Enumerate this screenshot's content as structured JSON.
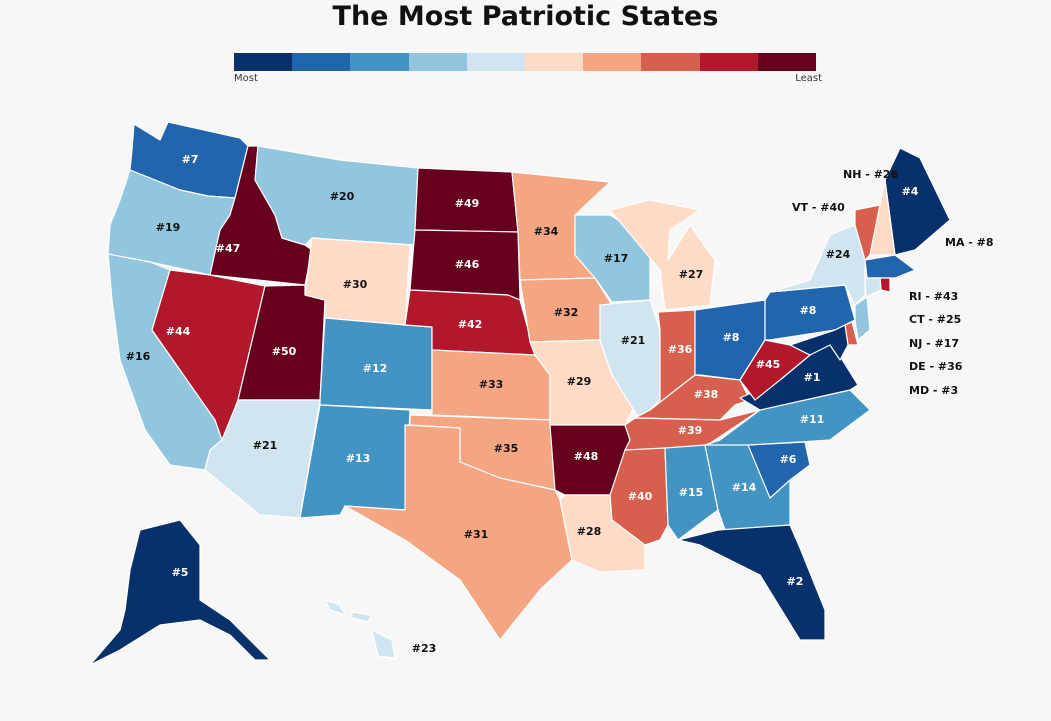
{
  "title": "The Most Patriotic States",
  "legend": {
    "low_label": "Most",
    "high_label": "Least",
    "colors": [
      "#08306b",
      "#2166ac",
      "#4393c3",
      "#92c5de",
      "#d1e5f0",
      "#fddbc7",
      "#f4a582",
      "#d6604d",
      "#b2182b",
      "#67001f"
    ]
  },
  "states": [
    {
      "abbr": "WA",
      "rank": 7
    },
    {
      "abbr": "OR",
      "rank": 19
    },
    {
      "abbr": "CA",
      "rank": 16
    },
    {
      "abbr": "ID",
      "rank": 47
    },
    {
      "abbr": "NV",
      "rank": 44
    },
    {
      "abbr": "UT",
      "rank": 50
    },
    {
      "abbr": "AZ",
      "rank": 21
    },
    {
      "abbr": "MT",
      "rank": 20
    },
    {
      "abbr": "WY",
      "rank": 30
    },
    {
      "abbr": "CO",
      "rank": 12
    },
    {
      "abbr": "NM",
      "rank": 13
    },
    {
      "abbr": "ND",
      "rank": 49
    },
    {
      "abbr": "SD",
      "rank": 46
    },
    {
      "abbr": "NE",
      "rank": 42
    },
    {
      "abbr": "KS",
      "rank": 33
    },
    {
      "abbr": "OK",
      "rank": 35
    },
    {
      "abbr": "TX",
      "rank": 31
    },
    {
      "abbr": "MN",
      "rank": 34
    },
    {
      "abbr": "IA",
      "rank": 32
    },
    {
      "abbr": "MO",
      "rank": 29
    },
    {
      "abbr": "AR",
      "rank": 48
    },
    {
      "abbr": "LA",
      "rank": 28
    },
    {
      "abbr": "WI",
      "rank": 17
    },
    {
      "abbr": "IL",
      "rank": 21
    },
    {
      "abbr": "MI",
      "rank": 27
    },
    {
      "abbr": "IN",
      "rank": 36
    },
    {
      "abbr": "OH",
      "rank": 8
    },
    {
      "abbr": "KY",
      "rank": 38
    },
    {
      "abbr": "TN",
      "rank": 39
    },
    {
      "abbr": "MS",
      "rank": 40
    },
    {
      "abbr": "AL",
      "rank": 15
    },
    {
      "abbr": "GA",
      "rank": 14
    },
    {
      "abbr": "FL",
      "rank": 2
    },
    {
      "abbr": "SC",
      "rank": 6
    },
    {
      "abbr": "NC",
      "rank": 11
    },
    {
      "abbr": "VA",
      "rank": 1
    },
    {
      "abbr": "WV",
      "rank": 45
    },
    {
      "abbr": "PA",
      "rank": 8
    },
    {
      "abbr": "NY",
      "rank": 24
    },
    {
      "abbr": "ME",
      "rank": 4
    },
    {
      "abbr": "AK",
      "rank": 5
    },
    {
      "abbr": "HI",
      "rank": 23
    },
    {
      "abbr": "NH",
      "rank": 26
    },
    {
      "abbr": "VT",
      "rank": 40
    },
    {
      "abbr": "MA",
      "rank": 8
    },
    {
      "abbr": "RI",
      "rank": 43
    },
    {
      "abbr": "CT",
      "rank": 25
    },
    {
      "abbr": "NJ",
      "rank": 17
    },
    {
      "abbr": "DE",
      "rank": 36
    },
    {
      "abbr": "MD",
      "rank": 3
    }
  ],
  "labels": [
    {
      "state": "WA",
      "text": "#7"
    },
    {
      "state": "OR",
      "text": "#19"
    },
    {
      "state": "CA",
      "text": "#16"
    },
    {
      "state": "ID",
      "text": "#47"
    },
    {
      "state": "NV",
      "text": "#44"
    },
    {
      "state": "UT",
      "text": "#50"
    },
    {
      "state": "AZ",
      "text": "#21"
    },
    {
      "state": "MT",
      "text": "#20"
    },
    {
      "state": "WY",
      "text": "#30"
    },
    {
      "state": "CO",
      "text": "#12"
    },
    {
      "state": "NM",
      "text": "#13"
    },
    {
      "state": "ND",
      "text": "#49"
    },
    {
      "state": "SD",
      "text": "#46"
    },
    {
      "state": "NE",
      "text": "#42"
    },
    {
      "state": "KS",
      "text": "#33"
    },
    {
      "state": "OK",
      "text": "#35"
    },
    {
      "state": "TX",
      "text": "#31"
    },
    {
      "state": "MN",
      "text": "#34"
    },
    {
      "state": "IA",
      "text": "#32"
    },
    {
      "state": "MO",
      "text": "#29"
    },
    {
      "state": "AR",
      "text": "#48"
    },
    {
      "state": "LA",
      "text": "#28"
    },
    {
      "state": "WI",
      "text": "#17"
    },
    {
      "state": "IL",
      "text": "#21"
    },
    {
      "state": "MI",
      "text": "#27"
    },
    {
      "state": "IN",
      "text": "#36"
    },
    {
      "state": "OH",
      "text": "#8"
    },
    {
      "state": "KY",
      "text": "#38"
    },
    {
      "state": "TN",
      "text": "#39"
    },
    {
      "state": "MS",
      "text": "#40"
    },
    {
      "state": "AL",
      "text": "#15"
    },
    {
      "state": "GA",
      "text": "#14"
    },
    {
      "state": "FL",
      "text": "#2"
    },
    {
      "state": "SC",
      "text": "#6"
    },
    {
      "state": "NC",
      "text": "#11"
    },
    {
      "state": "VA",
      "text": "#1"
    },
    {
      "state": "WV",
      "text": "#45"
    },
    {
      "state": "PA",
      "text": "#8"
    },
    {
      "state": "NY",
      "text": "#24"
    },
    {
      "state": "ME",
      "text": "#4"
    },
    {
      "state": "AK",
      "text": "#5"
    },
    {
      "state": "HI",
      "text": "#23"
    }
  ],
  "northeast_labels": [
    {
      "state": "NH",
      "text": "NH - #26"
    },
    {
      "state": "VT",
      "text": "VT - #40"
    },
    {
      "state": "MA",
      "text": "MA - #8"
    },
    {
      "state": "RI",
      "text": "RI - #43"
    },
    {
      "state": "CT",
      "text": "CT - #25"
    },
    {
      "state": "NJ",
      "text": "NJ - #17"
    },
    {
      "state": "DE",
      "text": "DE - #36"
    },
    {
      "state": "MD",
      "text": "MD - #3"
    }
  ]
}
